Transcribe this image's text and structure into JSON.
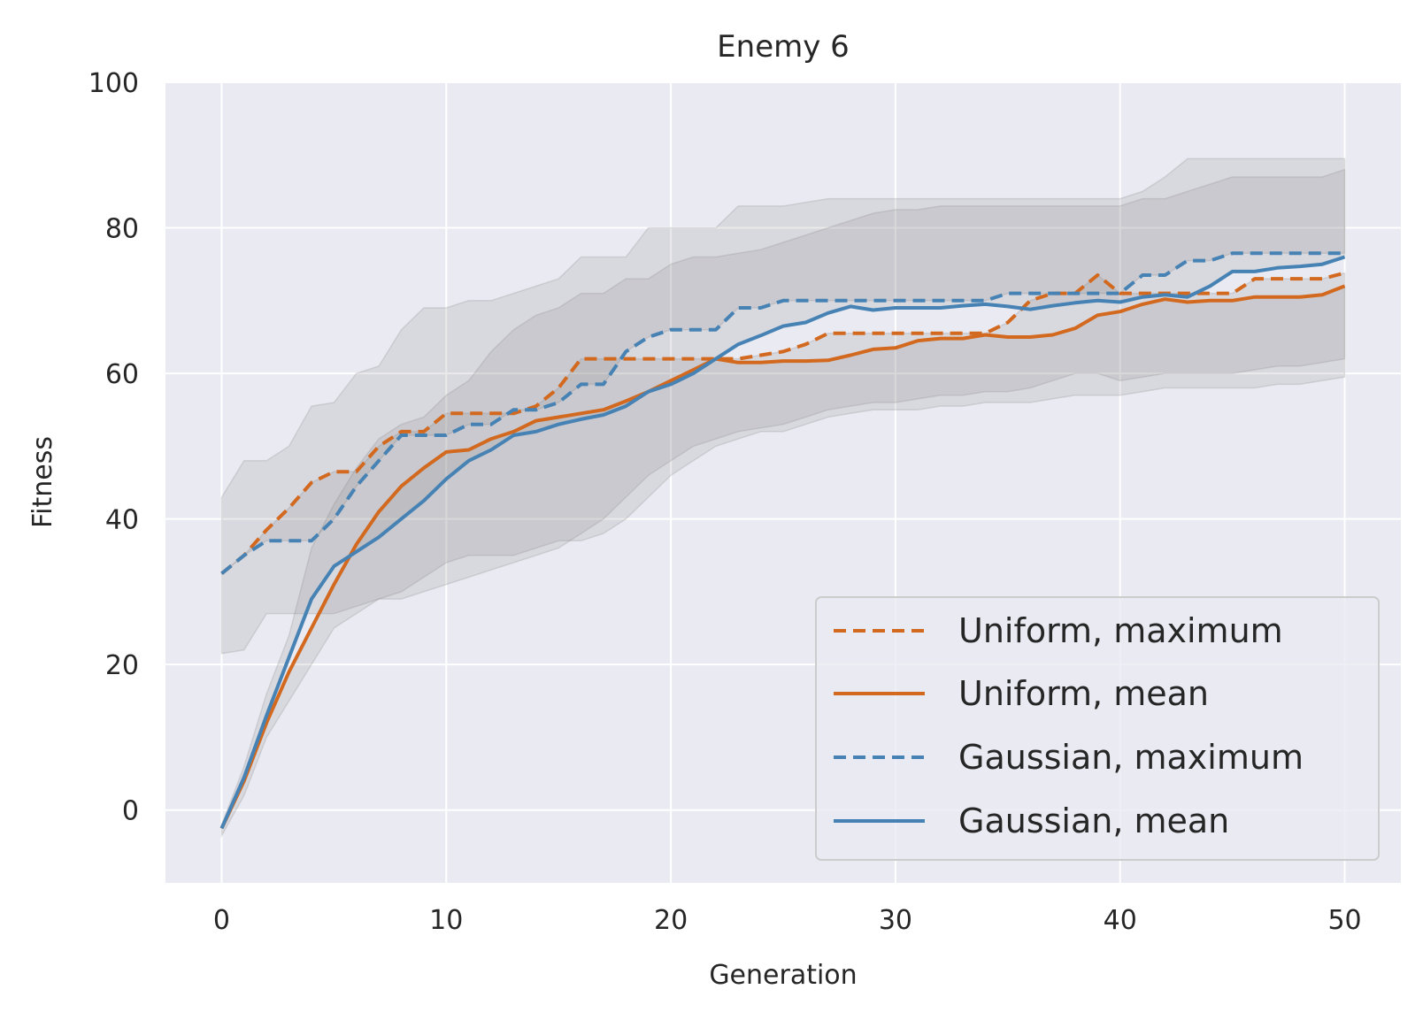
{
  "chart_data": {
    "type": "line",
    "title": "Enemy 6",
    "xlabel": "Generation",
    "ylabel": "Fitness",
    "xlim": [
      -2.5,
      52.5
    ],
    "ylim": [
      -10,
      100
    ],
    "xticks": [
      0,
      10,
      20,
      30,
      40,
      50
    ],
    "yticks": [
      0,
      20,
      40,
      60,
      80,
      100
    ],
    "grid": true,
    "legend_position": "lower-right",
    "colors": {
      "uniform": "#d2691e",
      "gaussian": "#4682b4",
      "band": "#808080",
      "background": "#eaeaf2",
      "grid": "#ffffff"
    },
    "x": [
      0,
      1,
      2,
      3,
      4,
      5,
      6,
      7,
      8,
      9,
      10,
      11,
      12,
      13,
      14,
      15,
      16,
      17,
      18,
      19,
      20,
      21,
      22,
      23,
      24,
      25,
      26,
      27,
      28,
      29,
      30,
      31,
      32,
      33,
      34,
      35,
      36,
      37,
      38,
      39,
      40,
      41,
      42,
      43,
      44,
      45,
      46,
      47,
      48,
      49,
      50
    ],
    "series": [
      {
        "name": "Uniform, maximum",
        "color": "#d2691e",
        "dash": "dashed",
        "values": [
          32.5,
          35,
          38.5,
          41.5,
          45,
          46.5,
          46.5,
          50,
          52,
          52,
          54.5,
          54.5,
          54.5,
          54.5,
          55.5,
          58,
          62,
          62,
          62,
          62,
          62,
          62,
          62,
          62,
          62.5,
          63,
          64,
          65.5,
          65.5,
          65.5,
          65.5,
          65.5,
          65.5,
          65.5,
          65.5,
          67,
          70,
          71,
          71,
          73.5,
          71,
          71,
          71,
          71,
          71,
          71,
          73,
          73,
          73,
          73,
          73.8
        ],
        "band": [
          21.5,
          22,
          27,
          27,
          27,
          27,
          28,
          29,
          29,
          30,
          31,
          32,
          33,
          34,
          35,
          36,
          38,
          40,
          43,
          46,
          48,
          50,
          51,
          52,
          52.5,
          53,
          54,
          55,
          55.5,
          56,
          56,
          56.5,
          57,
          57,
          57.5,
          57.5,
          58,
          59,
          60,
          60,
          59,
          59.5,
          60,
          60,
          60,
          60,
          60.5,
          61,
          61,
          61.5,
          62
        ]
      },
      {
        "name": "Uniform, mean",
        "color": "#d2691e",
        "dash": "solid",
        "values": [
          -2.5,
          4,
          12,
          19,
          25,
          31,
          36.5,
          41,
          44.5,
          47,
          49.2,
          49.5,
          51,
          52,
          53.5,
          54,
          54.5,
          55,
          56.2,
          57.5,
          59,
          60.5,
          62,
          61.5,
          61.5,
          61.7,
          61.7,
          61.8,
          62.5,
          63.3,
          63.5,
          64.5,
          64.8,
          64.8,
          65.3,
          65,
          65,
          65.3,
          66.2,
          68,
          68.5,
          69.5,
          70.2,
          69.8,
          70,
          70,
          70.5,
          70.5,
          70.5,
          70.8,
          72
        ],
        "band": [
          -3.5,
          2,
          10,
          15,
          20,
          25,
          27,
          29,
          30,
          32,
          34,
          35,
          35,
          35,
          36,
          37,
          37,
          38,
          40,
          43,
          46,
          48,
          50,
          51,
          52,
          52,
          53,
          54,
          54.5,
          55,
          55,
          55,
          55.5,
          55.5,
          56,
          56,
          56,
          56.5,
          57,
          57,
          57,
          57.5,
          58,
          58,
          58,
          58,
          58,
          58.5,
          58.5,
          59,
          59.5
        ]
      },
      {
        "name": "Gaussian, maximum",
        "color": "#4682b4",
        "dash": "dashed",
        "values": [
          32.5,
          35,
          37,
          37,
          37,
          40,
          44.5,
          48,
          51.5,
          51.5,
          51.5,
          53,
          53,
          55,
          55,
          56,
          58.5,
          58.5,
          63,
          65,
          66,
          66,
          66,
          69,
          69,
          70,
          70,
          70,
          70,
          70,
          70,
          70,
          70,
          70,
          70,
          71,
          71,
          71,
          71,
          71,
          71,
          73.5,
          73.5,
          75.5,
          75.5,
          76.5,
          76.5,
          76.5,
          76.5,
          76.5,
          76.5
        ],
        "band": [
          43,
          48,
          48,
          50,
          55.5,
          56,
          60,
          61,
          66,
          69,
          69,
          70,
          70,
          71,
          72,
          73,
          76,
          76,
          76,
          80,
          80,
          80,
          80,
          83,
          83,
          83,
          83.5,
          84,
          84,
          84,
          84,
          84,
          84,
          84,
          84,
          84,
          84,
          84,
          84,
          84,
          84,
          85,
          87,
          89.5,
          89.5,
          89.5,
          89.5,
          89.5,
          89.5,
          89.5,
          89.5
        ]
      },
      {
        "name": "Gaussian, mean",
        "color": "#4682b4",
        "dash": "solid",
        "values": [
          -2.5,
          4.5,
          13,
          21,
          29,
          33.5,
          35.5,
          37.5,
          40,
          42.5,
          45.5,
          48,
          49.5,
          51.5,
          52,
          53,
          53.7,
          54.3,
          55.5,
          57.5,
          58.5,
          60,
          62,
          64,
          65.2,
          66.5,
          67,
          68.3,
          69.2,
          68.7,
          69,
          69,
          69,
          69.3,
          69.5,
          69.2,
          68.8,
          69.3,
          69.7,
          70,
          69.8,
          70.5,
          70.8,
          70.5,
          72,
          74,
          74,
          74.5,
          74.7,
          75,
          76
        ],
        "band": [
          -2,
          6,
          16,
          24,
          36,
          42,
          47,
          51,
          53,
          54,
          57,
          59,
          63,
          66,
          68,
          69,
          71,
          71,
          73,
          73,
          75,
          76,
          76,
          76.5,
          77,
          78,
          79,
          80,
          81,
          82,
          82.5,
          82.5,
          83,
          83,
          83,
          83,
          83,
          83,
          83,
          83,
          83,
          84,
          84,
          85,
          86,
          87,
          87,
          87,
          87,
          87,
          88
        ]
      }
    ]
  }
}
